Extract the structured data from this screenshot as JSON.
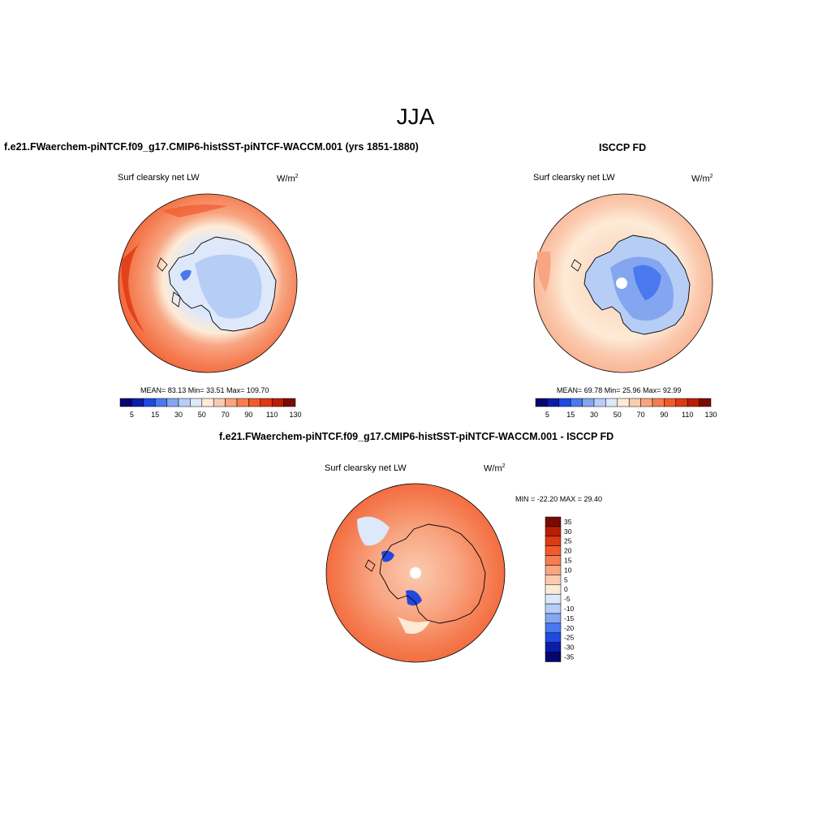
{
  "page": {
    "season": "JJA",
    "panel1_title": "f.e21.FWaerchem-piNTCF.f09_g17.CMIP6-histSST-piNTCF-WACCM.001 (yrs 1851-1880)",
    "panel2_title": "ISCCP FD",
    "panel3_title": "f.e21.FWaerchem-piNTCF.f09_g17.CMIP6-histSST-piNTCF-WACCM.001 - ISCCP FD"
  },
  "panels": [
    {
      "variable": "Surf clearsky net LW",
      "units": "W/m",
      "units_sup": "2",
      "stats": "MEAN=  83.13  Min=  33.51  Max= 109.70",
      "colorbar_labels": [
        "5",
        "15",
        "30",
        "50",
        "70",
        "90",
        "110",
        "130"
      ]
    },
    {
      "variable": "Surf clearsky net LW",
      "units": "W/m",
      "units_sup": "2",
      "stats": "MEAN=  69.78  Min=  25.96  Max=  92.99",
      "colorbar_labels": [
        "5",
        "15",
        "30",
        "50",
        "70",
        "90",
        "110",
        "130"
      ]
    },
    {
      "variable": "Surf clearsky net LW",
      "units": "W/m",
      "units_sup": "2",
      "stats": "MIN = -22.20 MAX =  29.40",
      "colorbar_labels": [
        "35",
        "30",
        "25",
        "20",
        "15",
        "10",
        "5",
        "0",
        "-5",
        "-10",
        "-15",
        "-20",
        "-25",
        "-30",
        "-35"
      ]
    }
  ],
  "colors": {
    "abs_palette": [
      "#05066e",
      "#0a1ea8",
      "#2148e0",
      "#4a78ee",
      "#84a6f0",
      "#b6cdf6",
      "#dde8fa",
      "#fdebd7",
      "#fbcbb0",
      "#f8a582",
      "#f57d52",
      "#f05a2d",
      "#dd3a13",
      "#b81e06",
      "#7a0b04"
    ],
    "diff_palette": [
      "#7a0b04",
      "#b81e06",
      "#dd3a13",
      "#f05a2d",
      "#f57d52",
      "#f8a582",
      "#fbcbb0",
      "#fdebd7",
      "#dde8fa",
      "#b6cdf6",
      "#84a6f0",
      "#4a78ee",
      "#2148e0",
      "#0a1ea8",
      "#05066e"
    ]
  }
}
